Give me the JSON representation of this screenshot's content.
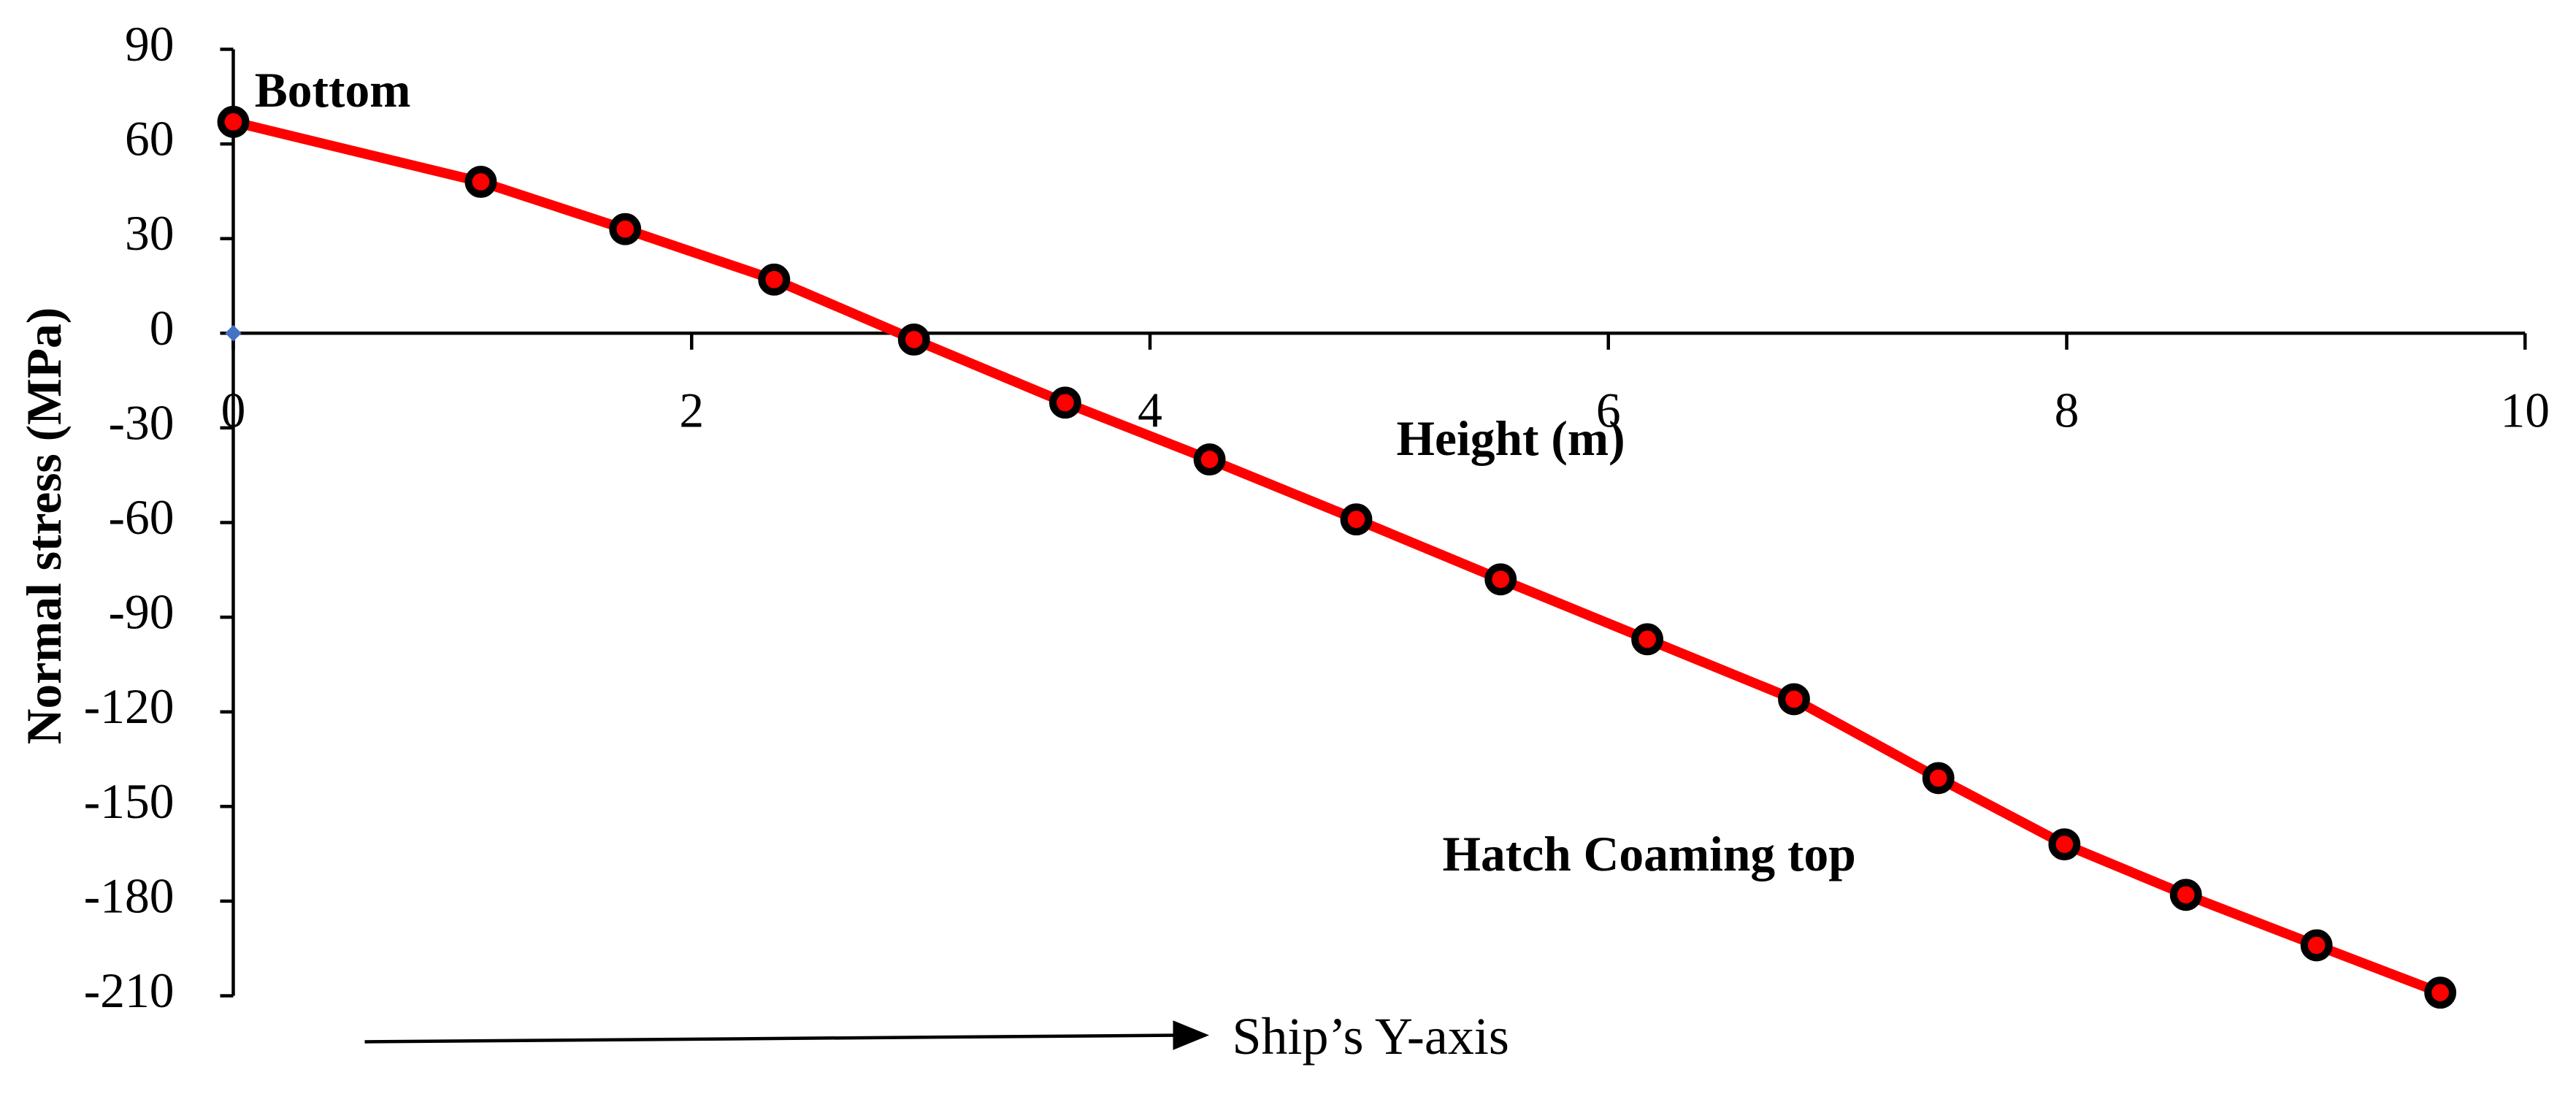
{
  "chart_data": {
    "type": "line",
    "y_label": "Normal stress (MPa)",
    "x_label": "Height (m)",
    "annotations": [
      "Bottom",
      "Hatch Coaming top",
      "Ship’s Y-axis"
    ],
    "xlim": [
      0,
      10
    ],
    "xticks": [
      0,
      2,
      4,
      6,
      8,
      10
    ],
    "ylim": [
      -210,
      90
    ],
    "yticks": [
      90,
      60,
      30,
      0,
      -30,
      -60,
      -90,
      -120,
      -150,
      -180,
      -210
    ],
    "series": [
      {
        "color": "#ff0000",
        "marker_edge": "#000000",
        "x": [
          0,
          1.08,
          1.71,
          2.36,
          2.97,
          3.63,
          4.26,
          4.9,
          5.53,
          6.17,
          6.81,
          7.44,
          7.99,
          8.52,
          9.09,
          9.63
        ],
        "values": [
          67,
          48,
          33,
          17,
          -2,
          -22,
          -40,
          -59,
          -78,
          -97,
          -116,
          -141,
          -162,
          -178,
          -194,
          -209
        ]
      },
      {
        "color": "#4472c4",
        "x": [
          0
        ],
        "values": [
          0
        ]
      }
    ]
  }
}
